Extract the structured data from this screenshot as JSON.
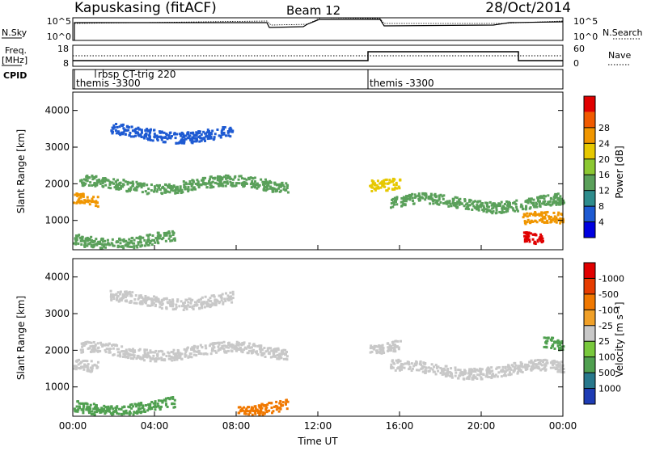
{
  "header": {
    "station": "Kapuskasing (fitACF)",
    "beam": "Beam 12",
    "date": "28/Oct/2014"
  },
  "param_panels": {
    "nsky_label": "N.Sky",
    "nsearch_label": "N.Search",
    "noise_ticks": [
      "10^5",
      "10^0"
    ],
    "freq_label": "Freq.",
    "freq_unit": "[MHz]",
    "freq_ticks": [
      "18",
      "8"
    ],
    "nave_label": "Nave",
    "nave_ticks": [
      "60",
      "0"
    ],
    "cpid_label": "CPID",
    "cpid_segments": [
      {
        "label": "themis -3300",
        "start_hour": 0.0
      },
      {
        "label": "rbsp CT-trig 220",
        "start_hour": 1.1
      },
      {
        "label": "themis -3300",
        "start_hour": 14.6
      }
    ]
  },
  "colors": {
    "power": [
      "#0000e0",
      "#1e5ad2",
      "#2e8c8c",
      "#5aa05a",
      "#8cc832",
      "#e6c800",
      "#f09600",
      "#f05a00",
      "#e00000"
    ],
    "velocity": [
      "#1e3cb4",
      "#28788c",
      "#50a050",
      "#78c83c",
      "#c8c8c8",
      "#f0a028",
      "#f07800",
      "#e63c00",
      "#e00000"
    ],
    "ground_scatter": "#c8c8c8"
  },
  "chart_data": [
    {
      "type": "heatmap",
      "name": "power",
      "ylabel": "Slant Range [km]",
      "yticks": [
        "1000",
        "2000",
        "3000",
        "4000"
      ],
      "ylim": [
        200,
        4500
      ],
      "xlim_hours": [
        0,
        24
      ],
      "colorbar_label": "Power [dB]",
      "colorbar_ticks": [
        "4",
        "8",
        "12",
        "16",
        "20",
        "24",
        "28"
      ],
      "colorbar_range": [
        0,
        30
      ],
      "scatter_bands": [
        {
          "t0": 1.8,
          "t1": 7.8,
          "range_km": 3400,
          "value_db": 6
        },
        {
          "t0": 0.3,
          "t1": 10.5,
          "range_km": 2000,
          "value_db": 10
        },
        {
          "t0": 0.0,
          "t1": 1.2,
          "range_km": 1550,
          "value_db": 22
        },
        {
          "t0": 0.0,
          "t1": 5.0,
          "range_km": 500,
          "value_db": 12
        },
        {
          "t0": 14.5,
          "t1": 16.0,
          "range_km": 2100,
          "value_db": 18
        },
        {
          "t0": 15.5,
          "t1": 24.0,
          "range_km": 1500,
          "value_db": 10
        },
        {
          "t0": 22.0,
          "t1": 24.0,
          "range_km": 1000,
          "value_db": 20
        },
        {
          "t0": 22.0,
          "t1": 23.0,
          "range_km": 450,
          "value_db": 30
        }
      ]
    },
    {
      "type": "heatmap",
      "name": "velocity",
      "ylabel": "Slant Range [km]",
      "yticks": [
        "1000",
        "2000",
        "3000",
        "4000"
      ],
      "ylim": [
        200,
        4500
      ],
      "xlabel": "Time UT",
      "xticks": [
        "00:00",
        "04:00",
        "08:00",
        "12:00",
        "16:00",
        "20:00",
        "00:00"
      ],
      "xlim_hours": [
        0,
        24
      ],
      "colorbar_label": "Velocity [m s⁻¹]",
      "colorbar_ticks": [
        "1000",
        "500",
        "100",
        "25",
        "-25",
        "-100",
        "-500",
        "-1000"
      ],
      "scatter_bands": [
        {
          "t0": 1.8,
          "t1": 7.8,
          "range_km": 3400,
          "value": "ground"
        },
        {
          "t0": 0.3,
          "t1": 10.5,
          "range_km": 2000,
          "value": "ground"
        },
        {
          "t0": 0.0,
          "t1": 1.2,
          "range_km": 1550,
          "value": "ground"
        },
        {
          "t0": 0.0,
          "t1": 5.0,
          "range_km": 500,
          "value_ms": 60
        },
        {
          "t0": 8.0,
          "t1": 10.5,
          "range_km": 450,
          "value_ms": -150
        },
        {
          "t0": 14.5,
          "t1": 16.0,
          "range_km": 2100,
          "value": "ground"
        },
        {
          "t0": 15.5,
          "t1": 24.0,
          "range_km": 1500,
          "value": "ground"
        },
        {
          "t0": 23.0,
          "t1": 24.0,
          "range_km": 2200,
          "value_ms": 80
        }
      ]
    }
  ]
}
